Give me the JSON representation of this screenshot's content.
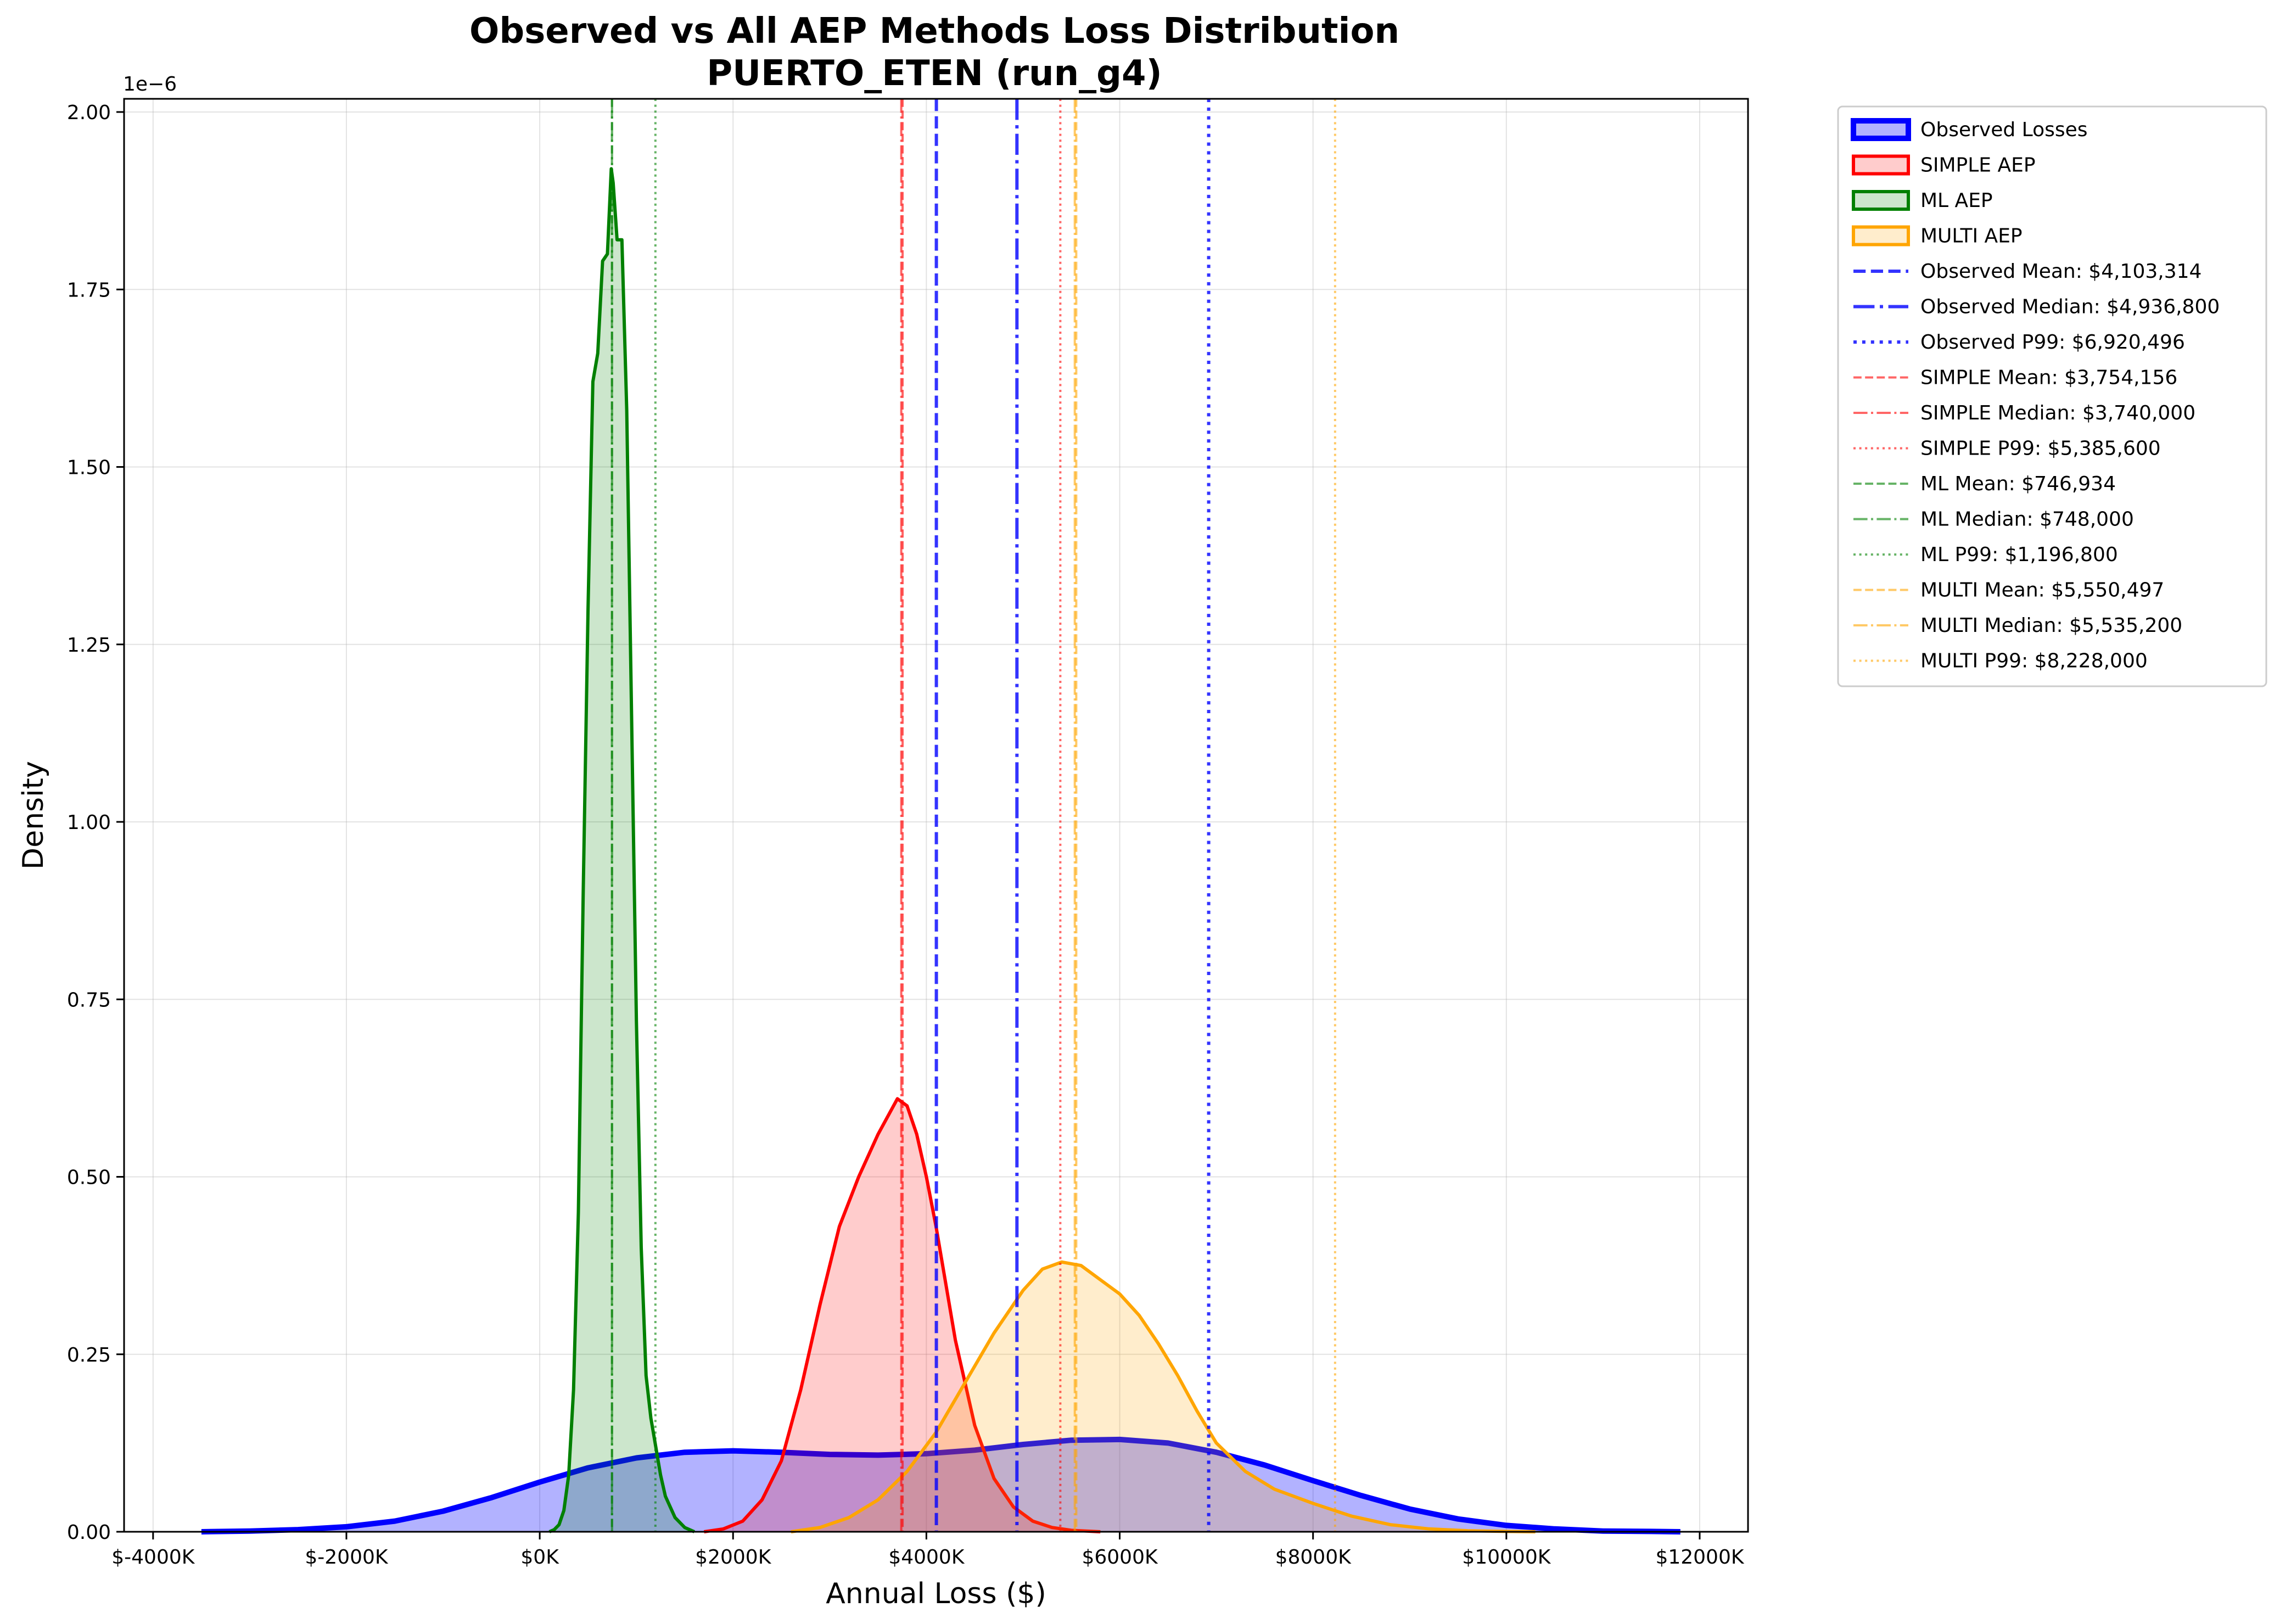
{
  "chart_data": {
    "type": "area",
    "title": "Observed vs All AEP Methods Loss Distribution",
    "subtitle": "PUERTO_ETEN (run_g4)",
    "xlabel": "Annual Loss ($)",
    "ylabel": "Density",
    "y_offset_label": "1e−6",
    "xlim": [
      -4300000,
      12500000
    ],
    "ylim": [
      0,
      2.02
    ],
    "grid": true,
    "legend_position": "outside-right",
    "x_ticks": [
      -4000000,
      -2000000,
      0,
      2000000,
      4000000,
      6000000,
      8000000,
      10000000,
      12000000
    ],
    "x_tick_labels": [
      "$-4000K",
      "$-2000K",
      "$0K",
      "$2000K",
      "$4000K",
      "$6000K",
      "$8000K",
      "$10000K",
      "$12000K"
    ],
    "y_ticks": [
      0,
      0.25,
      0.5,
      0.75,
      1.0,
      1.25,
      1.5,
      1.75,
      2.0
    ],
    "y_tick_labels": [
      "0.00",
      "0.25",
      "0.50",
      "0.75",
      "1.00",
      "1.25",
      "1.50",
      "1.75",
      "2.00"
    ],
    "series": [
      {
        "name": "Observed Losses",
        "color": "#0000ff",
        "fill": "#0000ff",
        "fill_opacity": 0.3,
        "line_width": 10,
        "x": [
          -3500000,
          -3000000,
          -2500000,
          -2000000,
          -1500000,
          -1000000,
          -500000,
          0,
          500000,
          1000000,
          1500000,
          2000000,
          2500000,
          3000000,
          3500000,
          4000000,
          4500000,
          5000000,
          5500000,
          6000000,
          6500000,
          7000000,
          7500000,
          8000000,
          8500000,
          9000000,
          9500000,
          10000000,
          10500000,
          11000000,
          11500000,
          11800000
        ],
        "y": [
          0.0,
          0.001,
          0.003,
          0.007,
          0.015,
          0.029,
          0.048,
          0.07,
          0.09,
          0.104,
          0.112,
          0.114,
          0.112,
          0.109,
          0.108,
          0.11,
          0.115,
          0.123,
          0.129,
          0.13,
          0.125,
          0.112,
          0.094,
          0.072,
          0.051,
          0.032,
          0.018,
          0.009,
          0.004,
          0.001,
          0.0005,
          0.0
        ]
      },
      {
        "name": "SIMPLE AEP",
        "color": "#ff0000",
        "fill": "#ff0000",
        "fill_opacity": 0.2,
        "line_width": 6,
        "x": [
          1700000,
          1900000,
          2100000,
          2300000,
          2500000,
          2700000,
          2900000,
          3100000,
          3300000,
          3500000,
          3700000,
          3800000,
          3900000,
          4000000,
          4100000,
          4200000,
          4300000,
          4500000,
          4700000,
          4900000,
          5100000,
          5300000,
          5500000,
          5800000
        ],
        "y": [
          0.0,
          0.004,
          0.015,
          0.045,
          0.1,
          0.2,
          0.32,
          0.43,
          0.5,
          0.56,
          0.61,
          0.6,
          0.56,
          0.5,
          0.43,
          0.35,
          0.27,
          0.15,
          0.075,
          0.035,
          0.015,
          0.006,
          0.002,
          0.0
        ]
      },
      {
        "name": "ML AEP",
        "color": "#008000",
        "fill": "#008000",
        "fill_opacity": 0.2,
        "line_width": 6,
        "x": [
          100000,
          150000,
          200000,
          250000,
          300000,
          350000,
          400000,
          450000,
          500000,
          550000,
          600000,
          650000,
          700000,
          740000,
          760000,
          800000,
          850000,
          900000,
          950000,
          1000000,
          1050000,
          1100000,
          1150000,
          1200000,
          1250000,
          1300000,
          1400000,
          1500000,
          1600000
        ],
        "y": [
          0.0,
          0.003,
          0.01,
          0.03,
          0.08,
          0.2,
          0.45,
          0.9,
          1.3,
          1.62,
          1.66,
          1.79,
          1.8,
          1.92,
          1.9,
          1.82,
          1.82,
          1.58,
          1.15,
          0.72,
          0.4,
          0.22,
          0.16,
          0.12,
          0.08,
          0.05,
          0.02,
          0.006,
          0.0
        ]
      },
      {
        "name": "MULTI AEP",
        "color": "#ffa500",
        "fill": "#ffa500",
        "fill_opacity": 0.2,
        "line_width": 6,
        "x": [
          2600000,
          2900000,
          3200000,
          3500000,
          3800000,
          4100000,
          4400000,
          4700000,
          5000000,
          5200000,
          5400000,
          5600000,
          5800000,
          6000000,
          6200000,
          6400000,
          6600000,
          6800000,
          7000000,
          7300000,
          7600000,
          8000000,
          8400000,
          8800000,
          9200000,
          9600000,
          10000000,
          10300000
        ],
        "y": [
          0.0,
          0.006,
          0.02,
          0.045,
          0.085,
          0.14,
          0.21,
          0.28,
          0.34,
          0.37,
          0.38,
          0.375,
          0.355,
          0.335,
          0.305,
          0.265,
          0.22,
          0.17,
          0.125,
          0.085,
          0.06,
          0.04,
          0.022,
          0.01,
          0.004,
          0.0015,
          0.0005,
          0.0
        ]
      }
    ],
    "reference_lines": [
      {
        "label": "Observed Mean: $4,103,314",
        "x": 4103314,
        "color": "#0000ff",
        "style": "dashed",
        "opacity": 0.8,
        "width": 6
      },
      {
        "label": "Observed Median: $4,936,800",
        "x": 4936800,
        "color": "#0000ff",
        "style": "dashdot",
        "opacity": 0.8,
        "width": 6
      },
      {
        "label": "Observed P99: $6,920,496",
        "x": 6920496,
        "color": "#0000ff",
        "style": "dotted",
        "opacity": 0.8,
        "width": 6
      },
      {
        "label": "SIMPLE Mean: $3,754,156",
        "x": 3754156,
        "color": "#ff0000",
        "style": "dashed",
        "opacity": 0.6,
        "width": 4
      },
      {
        "label": "SIMPLE Median: $3,740,000",
        "x": 3740000,
        "color": "#ff0000",
        "style": "dashdot",
        "opacity": 0.6,
        "width": 4
      },
      {
        "label": "SIMPLE P99: $5,385,600",
        "x": 5385600,
        "color": "#ff0000",
        "style": "dotted",
        "opacity": 0.6,
        "width": 4
      },
      {
        "label": "ML Mean: $746,934",
        "x": 746934,
        "color": "#008000",
        "style": "dashed",
        "opacity": 0.6,
        "width": 4
      },
      {
        "label": "ML Median: $748,000",
        "x": 748000,
        "color": "#008000",
        "style": "dashdot",
        "opacity": 0.6,
        "width": 4
      },
      {
        "label": "ML P99: $1,196,800",
        "x": 1196800,
        "color": "#008000",
        "style": "dotted",
        "opacity": 0.6,
        "width": 4
      },
      {
        "label": "MULTI Mean: $5,550,497",
        "x": 5550497,
        "color": "#ffa500",
        "style": "dashed",
        "opacity": 0.6,
        "width": 4
      },
      {
        "label": "MULTI Median: $5,535,200",
        "x": 5535200,
        "color": "#ffa500",
        "style": "dashdot",
        "opacity": 0.6,
        "width": 4
      },
      {
        "label": "MULTI P99: $8,228,000",
        "x": 8228000,
        "color": "#ffa500",
        "style": "dotted",
        "opacity": 0.6,
        "width": 4
      }
    ]
  }
}
